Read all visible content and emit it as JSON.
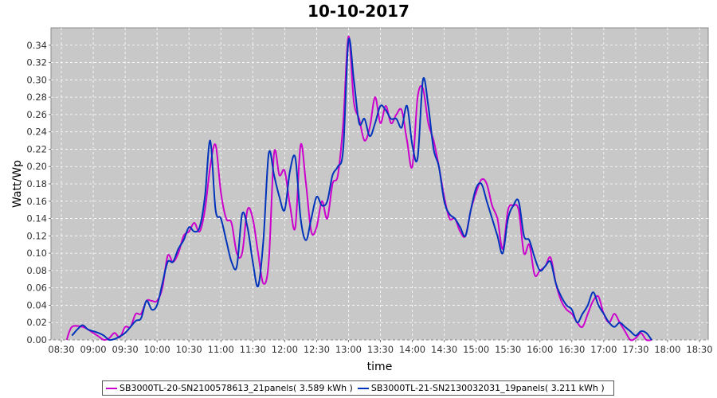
{
  "chart_data": {
    "type": "line",
    "title": "10-10-2017",
    "xlabel": "time",
    "ylabel": "Watt/Wp",
    "x_ticks": [
      "08:30",
      "09:00",
      "09:30",
      "10:00",
      "10:30",
      "11:00",
      "11:30",
      "12:00",
      "12:30",
      "13:00",
      "13:30",
      "14:00",
      "14:30",
      "15:00",
      "15:30",
      "16:00",
      "16:30",
      "17:00",
      "17:30",
      "18:00",
      "18:30"
    ],
    "y_ticks": [
      "0.00",
      "0.02",
      "0.04",
      "0.06",
      "0.08",
      "0.10",
      "0.12",
      "0.14",
      "0.16",
      "0.18",
      "0.20",
      "0.22",
      "0.24",
      "0.26",
      "0.28",
      "0.30",
      "0.32",
      "0.34"
    ],
    "xlim": [
      "08:30",
      "18:30"
    ],
    "ylim": [
      0,
      0.36
    ],
    "grid": true,
    "legend_position": "bottom",
    "background_color": "#c8c8c8",
    "series": [
      {
        "name": "SB3000TL-20-SN2100578613_21panels( 3.589 kWh )",
        "color": "#cc00cc",
        "points": [
          [
            "08:35",
            0.0
          ],
          [
            "08:40",
            0.015
          ],
          [
            "08:50",
            0.015
          ],
          [
            "08:55",
            0.012
          ],
          [
            "09:00",
            0.008
          ],
          [
            "09:05",
            0.004
          ],
          [
            "09:10",
            0.0
          ],
          [
            "09:15",
            0.002
          ],
          [
            "09:20",
            0.008
          ],
          [
            "09:25",
            0.003
          ],
          [
            "09:30",
            0.015
          ],
          [
            "09:35",
            0.015
          ],
          [
            "09:40",
            0.03
          ],
          [
            "09:45",
            0.03
          ],
          [
            "09:50",
            0.045
          ],
          [
            "09:55",
            0.045
          ],
          [
            "10:00",
            0.045
          ],
          [
            "10:05",
            0.06
          ],
          [
            "10:10",
            0.097
          ],
          [
            "10:15",
            0.09
          ],
          [
            "10:20",
            0.1
          ],
          [
            "10:25",
            0.12
          ],
          [
            "10:30",
            0.125
          ],
          [
            "10:35",
            0.135
          ],
          [
            "10:40",
            0.125
          ],
          [
            "10:45",
            0.15
          ],
          [
            "10:50",
            0.2
          ],
          [
            "10:55",
            0.225
          ],
          [
            "11:00",
            0.17
          ],
          [
            "11:05",
            0.14
          ],
          [
            "11:10",
            0.135
          ],
          [
            "11:15",
            0.1
          ],
          [
            "11:20",
            0.1
          ],
          [
            "11:25",
            0.15
          ],
          [
            "11:30",
            0.14
          ],
          [
            "11:35",
            0.1
          ],
          [
            "11:40",
            0.065
          ],
          [
            "11:45",
            0.09
          ],
          [
            "11:50",
            0.215
          ],
          [
            "11:55",
            0.19
          ],
          [
            "12:00",
            0.195
          ],
          [
            "12:05",
            0.155
          ],
          [
            "12:10",
            0.13
          ],
          [
            "12:15",
            0.225
          ],
          [
            "12:20",
            0.18
          ],
          [
            "12:25",
            0.125
          ],
          [
            "12:30",
            0.13
          ],
          [
            "12:35",
            0.16
          ],
          [
            "12:40",
            0.14
          ],
          [
            "12:45",
            0.18
          ],
          [
            "12:50",
            0.19
          ],
          [
            "12:55",
            0.25
          ],
          [
            "13:00",
            0.35
          ],
          [
            "13:05",
            0.275
          ],
          [
            "13:10",
            0.255
          ],
          [
            "13:15",
            0.23
          ],
          [
            "13:20",
            0.245
          ],
          [
            "13:25",
            0.28
          ],
          [
            "13:30",
            0.25
          ],
          [
            "13:35",
            0.27
          ],
          [
            "13:40",
            0.25
          ],
          [
            "13:45",
            0.26
          ],
          [
            "13:50",
            0.265
          ],
          [
            "13:55",
            0.23
          ],
          [
            "14:00",
            0.2
          ],
          [
            "14:05",
            0.28
          ],
          [
            "14:10",
            0.29
          ],
          [
            "14:15",
            0.25
          ],
          [
            "14:20",
            0.23
          ],
          [
            "14:25",
            0.2
          ],
          [
            "14:30",
            0.165
          ],
          [
            "14:35",
            0.14
          ],
          [
            "14:40",
            0.14
          ],
          [
            "14:45",
            0.125
          ],
          [
            "14:50",
            0.12
          ],
          [
            "14:55",
            0.15
          ],
          [
            "15:00",
            0.17
          ],
          [
            "15:05",
            0.185
          ],
          [
            "15:10",
            0.18
          ],
          [
            "15:15",
            0.155
          ],
          [
            "15:20",
            0.14
          ],
          [
            "15:25",
            0.105
          ],
          [
            "15:30",
            0.15
          ],
          [
            "15:35",
            0.155
          ],
          [
            "15:40",
            0.15
          ],
          [
            "15:45",
            0.1
          ],
          [
            "15:50",
            0.11
          ],
          [
            "15:55",
            0.075
          ],
          [
            "16:00",
            0.08
          ],
          [
            "16:05",
            0.085
          ],
          [
            "16:10",
            0.095
          ],
          [
            "16:15",
            0.065
          ],
          [
            "16:20",
            0.045
          ],
          [
            "16:25",
            0.035
          ],
          [
            "16:30",
            0.03
          ],
          [
            "16:35",
            0.02
          ],
          [
            "16:40",
            0.015
          ],
          [
            "16:45",
            0.03
          ],
          [
            "16:50",
            0.045
          ],
          [
            "16:55",
            0.05
          ],
          [
            "17:00",
            0.03
          ],
          [
            "17:05",
            0.02
          ],
          [
            "17:10",
            0.03
          ],
          [
            "17:15",
            0.02
          ],
          [
            "17:20",
            0.01
          ],
          [
            "17:25",
            0.0
          ],
          [
            "17:30",
            0.002
          ],
          [
            "17:35",
            0.008
          ],
          [
            "17:40",
            0.0
          ],
          [
            "17:45",
            0.0
          ]
        ]
      },
      {
        "name": "SB3000TL-21-SN2130032031_19panels( 3.211 kWh )",
        "color": "#0033bb",
        "points": [
          [
            "08:40",
            0.005
          ],
          [
            "08:45",
            0.012
          ],
          [
            "08:50",
            0.017
          ],
          [
            "08:55",
            0.012
          ],
          [
            "09:00",
            0.01
          ],
          [
            "09:05",
            0.008
          ],
          [
            "09:10",
            0.005
          ],
          [
            "09:15",
            0.0
          ],
          [
            "09:20",
            0.001
          ],
          [
            "09:25",
            0.004
          ],
          [
            "09:30",
            0.008
          ],
          [
            "09:35",
            0.015
          ],
          [
            "09:40",
            0.022
          ],
          [
            "09:45",
            0.025
          ],
          [
            "09:50",
            0.045
          ],
          [
            "09:55",
            0.035
          ],
          [
            "10:00",
            0.04
          ],
          [
            "10:05",
            0.065
          ],
          [
            "10:10",
            0.09
          ],
          [
            "10:15",
            0.09
          ],
          [
            "10:20",
            0.105
          ],
          [
            "10:25",
            0.115
          ],
          [
            "10:30",
            0.13
          ],
          [
            "10:35",
            0.125
          ],
          [
            "10:40",
            0.13
          ],
          [
            "10:45",
            0.165
          ],
          [
            "10:50",
            0.23
          ],
          [
            "10:55",
            0.15
          ],
          [
            "11:00",
            0.14
          ],
          [
            "11:05",
            0.115
          ],
          [
            "11:10",
            0.09
          ],
          [
            "11:15",
            0.085
          ],
          [
            "11:20",
            0.145
          ],
          [
            "11:25",
            0.13
          ],
          [
            "11:30",
            0.09
          ],
          [
            "11:35",
            0.062
          ],
          [
            "11:40",
            0.115
          ],
          [
            "11:45",
            0.215
          ],
          [
            "11:50",
            0.19
          ],
          [
            "11:55",
            0.165
          ],
          [
            "12:00",
            0.15
          ],
          [
            "12:05",
            0.195
          ],
          [
            "12:10",
            0.21
          ],
          [
            "12:15",
            0.14
          ],
          [
            "12:20",
            0.115
          ],
          [
            "12:25",
            0.14
          ],
          [
            "12:30",
            0.165
          ],
          [
            "12:35",
            0.155
          ],
          [
            "12:40",
            0.16
          ],
          [
            "12:45",
            0.19
          ],
          [
            "12:50",
            0.2
          ],
          [
            "12:55",
            0.22
          ],
          [
            "13:00",
            0.345
          ],
          [
            "13:05",
            0.3
          ],
          [
            "13:10",
            0.25
          ],
          [
            "13:15",
            0.255
          ],
          [
            "13:20",
            0.235
          ],
          [
            "13:25",
            0.25
          ],
          [
            "13:30",
            0.27
          ],
          [
            "13:35",
            0.265
          ],
          [
            "13:40",
            0.255
          ],
          [
            "13:45",
            0.255
          ],
          [
            "13:50",
            0.245
          ],
          [
            "13:55",
            0.27
          ],
          [
            "14:00",
            0.225
          ],
          [
            "14:05",
            0.21
          ],
          [
            "14:10",
            0.3
          ],
          [
            "14:15",
            0.27
          ],
          [
            "14:20",
            0.22
          ],
          [
            "14:25",
            0.2
          ],
          [
            "14:30",
            0.16
          ],
          [
            "14:35",
            0.145
          ],
          [
            "14:40",
            0.14
          ],
          [
            "14:45",
            0.13
          ],
          [
            "14:50",
            0.12
          ],
          [
            "14:55",
            0.15
          ],
          [
            "15:00",
            0.175
          ],
          [
            "15:05",
            0.18
          ],
          [
            "15:10",
            0.16
          ],
          [
            "15:15",
            0.14
          ],
          [
            "15:20",
            0.12
          ],
          [
            "15:25",
            0.1
          ],
          [
            "15:30",
            0.14
          ],
          [
            "15:35",
            0.155
          ],
          [
            "15:40",
            0.16
          ],
          [
            "15:45",
            0.12
          ],
          [
            "15:50",
            0.115
          ],
          [
            "15:55",
            0.095
          ],
          [
            "16:00",
            0.08
          ],
          [
            "16:05",
            0.085
          ],
          [
            "16:10",
            0.09
          ],
          [
            "16:15",
            0.065
          ],
          [
            "16:20",
            0.05
          ],
          [
            "16:25",
            0.04
          ],
          [
            "16:30",
            0.035
          ],
          [
            "16:35",
            0.02
          ],
          [
            "16:40",
            0.03
          ],
          [
            "16:45",
            0.04
          ],
          [
            "16:50",
            0.055
          ],
          [
            "16:55",
            0.04
          ],
          [
            "17:00",
            0.03
          ],
          [
            "17:05",
            0.02
          ],
          [
            "17:10",
            0.015
          ],
          [
            "17:15",
            0.02
          ],
          [
            "17:20",
            0.015
          ],
          [
            "17:25",
            0.01
          ],
          [
            "17:30",
            0.005
          ],
          [
            "17:35",
            0.01
          ],
          [
            "17:40",
            0.008
          ],
          [
            "17:45",
            0.0
          ]
        ]
      }
    ]
  }
}
